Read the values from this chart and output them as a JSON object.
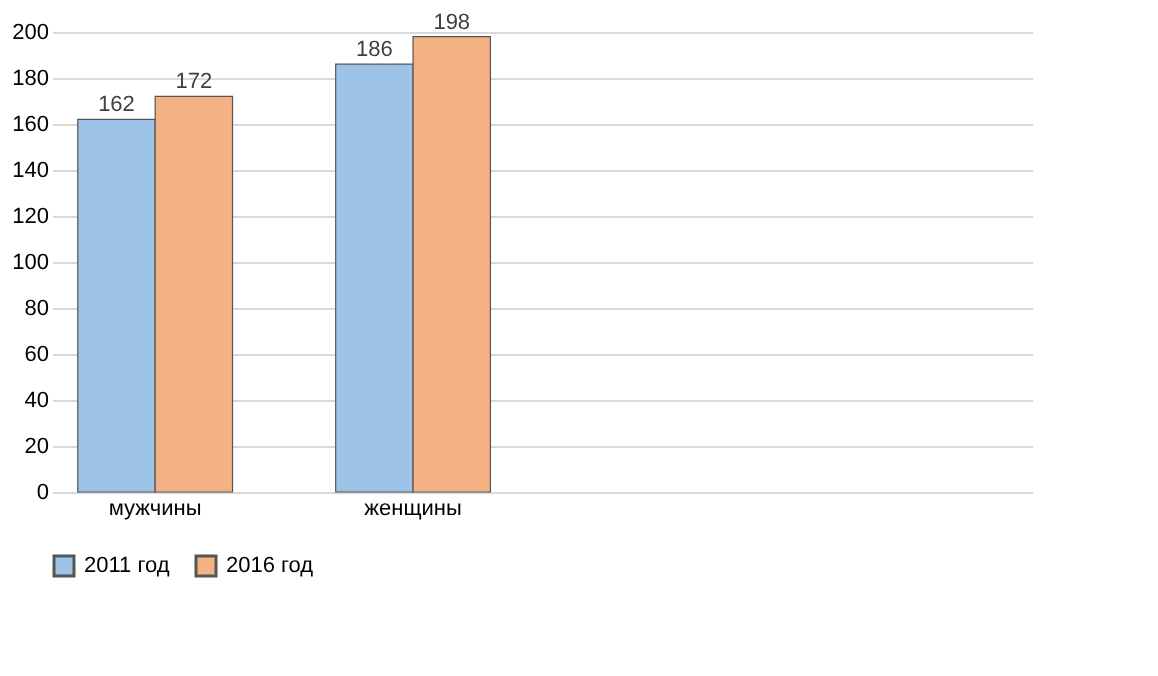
{
  "chart_data": {
    "type": "bar",
    "categories": [
      "мужчины",
      "женщины",
      null,
      null
    ],
    "series": [
      {
        "name": "2011 год",
        "color": "#9dc3e6",
        "values": [
          162,
          186,
          null,
          null
        ]
      },
      {
        "name": "2016 год",
        "color": "#f4b183",
        "values": [
          172,
          198,
          null,
          null
        ]
      }
    ],
    "ylim": [
      0,
      200
    ],
    "yticks": [
      0,
      20,
      40,
      60,
      80,
      100,
      120,
      140,
      160,
      180,
      200
    ],
    "grid": "y",
    "legend": "bottom",
    "data_labels": true
  }
}
